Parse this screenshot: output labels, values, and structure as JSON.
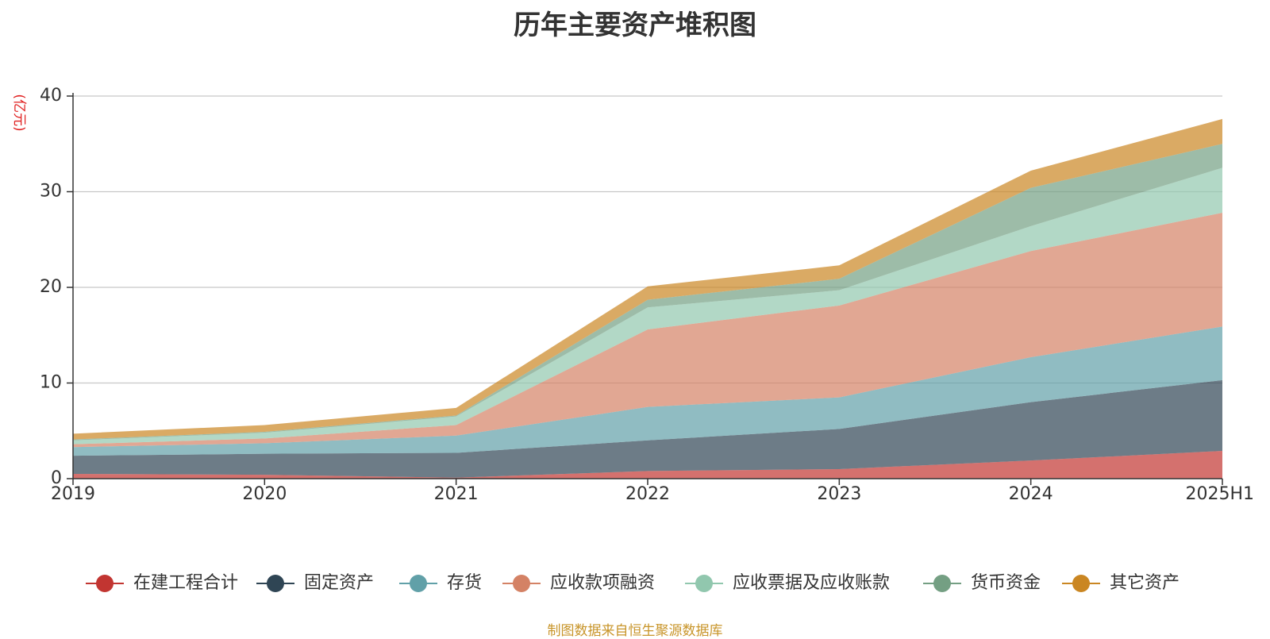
{
  "chart_data": {
    "type": "area",
    "stacked": true,
    "title": "历年主要资产堆积图",
    "ylabel": "(亿元)",
    "xlabel": "",
    "ylim": [
      0,
      40
    ],
    "yticks": [
      "0",
      "10",
      "20",
      "30",
      "40"
    ],
    "categories": [
      "2019",
      "2020",
      "2021",
      "2022",
      "2023",
      "2024",
      "2025H1"
    ],
    "grid": true,
    "legend_position": "bottom",
    "series": [
      {
        "name": "在建工程合计",
        "color": "#c23531",
        "values": [
          0.5,
          0.4,
          0.1,
          0.8,
          1.0,
          1.9,
          2.9
        ]
      },
      {
        "name": "固定资产",
        "color": "#2f4554",
        "values": [
          1.9,
          2.2,
          2.6,
          3.2,
          4.2,
          6.1,
          7.4
        ]
      },
      {
        "name": "存货",
        "color": "#61a0a8",
        "values": [
          0.9,
          1.1,
          1.8,
          3.5,
          3.3,
          4.7,
          5.6
        ]
      },
      {
        "name": "应收款项融资",
        "color": "#d48265",
        "values": [
          0.3,
          0.5,
          1.1,
          8.1,
          9.6,
          11.1,
          11.9
        ]
      },
      {
        "name": "应收票据及应收账款",
        "color": "#91c7ae",
        "values": [
          0.4,
          0.6,
          0.9,
          2.3,
          1.6,
          2.6,
          4.7
        ]
      },
      {
        "name": "货币资金",
        "color": "#749f83",
        "values": [
          0.1,
          0.1,
          0.1,
          0.8,
          1.2,
          4.0,
          2.5
        ]
      },
      {
        "name": "其它资产",
        "color": "#ca8622",
        "values": [
          0.6,
          0.7,
          0.8,
          1.4,
          1.4,
          1.8,
          2.6
        ]
      }
    ]
  },
  "source_note": "制图数据来自恒生聚源数据库",
  "colors": {
    "title": "#333333",
    "axis_text": "#333333",
    "unit_label": "#e02020",
    "source_note": "#c8952a",
    "grid": "#c8c8c8"
  }
}
